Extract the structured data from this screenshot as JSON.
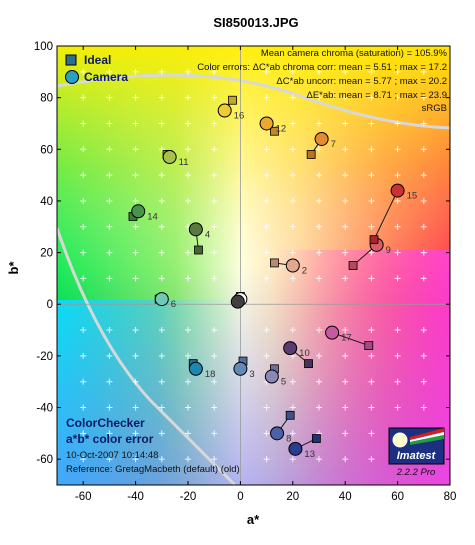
{
  "chart_data": {
    "type": "scatter",
    "title": "SI850013.JPG",
    "xlabel": "a*",
    "ylabel": "b*",
    "xlim": [
      -70,
      80
    ],
    "ylim": [
      -70,
      100
    ],
    "xticks": [
      -60,
      -40,
      -20,
      0,
      20,
      40,
      60,
      80
    ],
    "yticks": [
      -60,
      -40,
      -20,
      0,
      20,
      40,
      60,
      80,
      100
    ],
    "legend": {
      "position": "top-left",
      "entries": [
        "Ideal",
        "Camera"
      ]
    },
    "info_lines": [
      "Mean camera chroma (saturation) = 105.9%",
      "Color errors:  ΔC*ab chroma corr:  mean = 5.51 ;  max = 17.2",
      "ΔC*ab uncorr:  mean = 5.77 ;  max = 20.2",
      "ΔE*ab:  mean = 8.71 ;  max = 23.9",
      "sRGB"
    ],
    "bottom_left": {
      "title1": "ColorChecker",
      "title2": "a*b* color error",
      "date": "10-Oct-2007 10:14:48",
      "reference": "Reference: GretagMacbeth (default) (old)"
    },
    "logo": {
      "name": "Imatest",
      "version": "2.2.2  Pro"
    },
    "patches": [
      {
        "id": "1",
        "label": "",
        "ideal": [
          0,
          3
        ],
        "camera": [
          0,
          2
        ],
        "color": "#ffffff"
      },
      {
        "id": "2",
        "label": "2",
        "ideal": [
          13,
          16
        ],
        "camera": [
          20,
          15
        ],
        "color": "#e0a890"
      },
      {
        "id": "3",
        "label": "3",
        "ideal": [
          1,
          -22
        ],
        "camera": [
          0,
          -25
        ],
        "color": "#6488b8"
      },
      {
        "id": "4",
        "label": "4",
        "ideal": [
          -16,
          21
        ],
        "camera": [
          -17,
          29
        ],
        "color": "#5a7840"
      },
      {
        "id": "5",
        "label": "5",
        "ideal": [
          13,
          -25
        ],
        "camera": [
          12,
          -28
        ],
        "color": "#8888bb"
      },
      {
        "id": "6",
        "label": "6",
        "ideal": [
          -31,
          2
        ],
        "camera": [
          -30,
          2
        ],
        "color": "#70c8b8"
      },
      {
        "id": "7",
        "label": "7",
        "ideal": [
          27,
          58
        ],
        "camera": [
          31,
          64
        ],
        "color": "#e48a30"
      },
      {
        "id": "8",
        "label": "8",
        "ideal": [
          19,
          -43
        ],
        "camera": [
          14,
          -50
        ],
        "color": "#4c60a8"
      },
      {
        "id": "9",
        "label": "9",
        "ideal": [
          43,
          15
        ],
        "camera": [
          52,
          23
        ],
        "color": "#d85c6c"
      },
      {
        "id": "10",
        "label": "10",
        "ideal": [
          26,
          -23
        ],
        "camera": [
          19,
          -17
        ],
        "color": "#5a3c6e"
      },
      {
        "id": "11",
        "label": "11",
        "ideal": [
          -28,
          58
        ],
        "camera": [
          -27,
          57
        ],
        "color": "#a8c048"
      },
      {
        "id": "12",
        "label": "12",
        "ideal": [
          13,
          67
        ],
        "camera": [
          10,
          70
        ],
        "color": "#eca830"
      },
      {
        "id": "13",
        "label": "13",
        "ideal": [
          29,
          -52
        ],
        "camera": [
          21,
          -56
        ],
        "color": "#2a3c90"
      },
      {
        "id": "14",
        "label": "14",
        "ideal": [
          -41,
          34
        ],
        "camera": [
          -39,
          36
        ],
        "color": "#48944c"
      },
      {
        "id": "15",
        "label": "15",
        "ideal": [
          51,
          25
        ],
        "camera": [
          60,
          44
        ],
        "color": "#cc3030"
      },
      {
        "id": "16",
        "label": "16",
        "ideal": [
          -3,
          79
        ],
        "camera": [
          -6,
          75
        ],
        "color": "#f0cc30"
      },
      {
        "id": "17",
        "label": "17",
        "ideal": [
          49,
          -16
        ],
        "camera": [
          35,
          -11
        ],
        "color": "#c858a0"
      },
      {
        "id": "18",
        "label": "18",
        "ideal": [
          -18,
          -23
        ],
        "camera": [
          -17,
          -25
        ],
        "color": "#1c88b0"
      },
      {
        "id": "19",
        "label": "",
        "ideal": [
          -1,
          1
        ],
        "camera": [
          -1,
          1
        ],
        "color": "#404040"
      }
    ]
  }
}
